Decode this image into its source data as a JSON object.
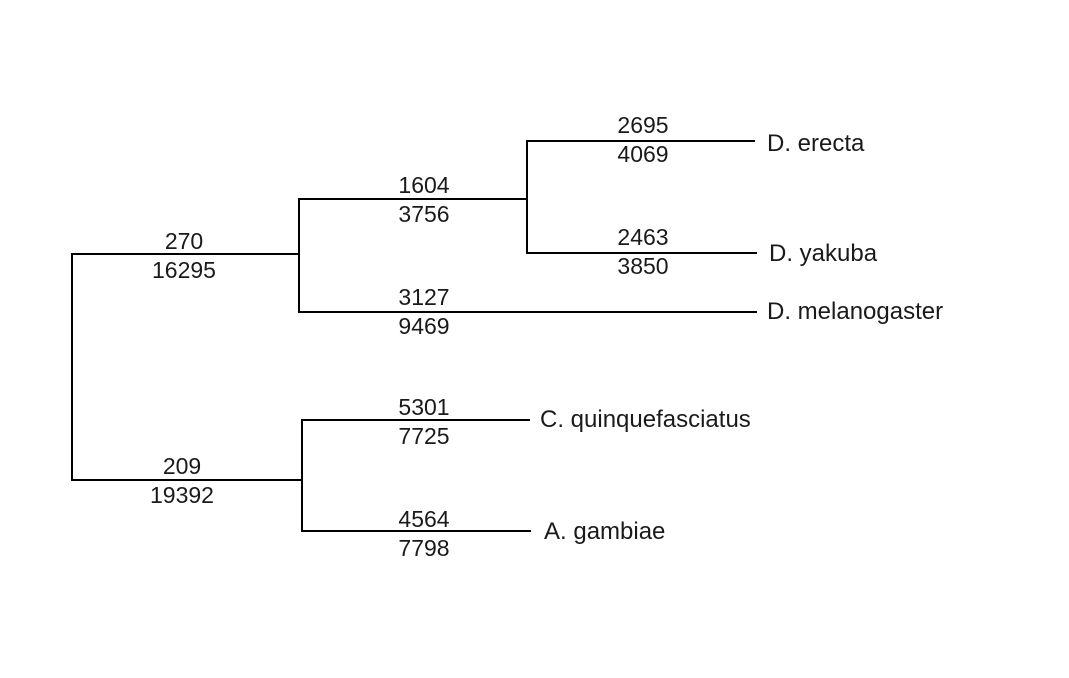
{
  "tree": {
    "leaves": {
      "erecta": "D. erecta",
      "yakuba": "D. yakuba",
      "melanogaster": "D. melanogaster",
      "quinquefasciatus": "C. quinquefasciatus",
      "gambiae": "A. gambiae"
    },
    "branches": {
      "drosophila_clade": {
        "top": "270",
        "bottom": "16295"
      },
      "mosquito_clade": {
        "top": "209",
        "bottom": "19392"
      },
      "erecta_yakuba_clade": {
        "top": "1604",
        "bottom": "3756"
      },
      "melanogaster": {
        "top": "3127",
        "bottom": "9469"
      },
      "erecta": {
        "top": "2695",
        "bottom": "4069"
      },
      "yakuba": {
        "top": "2463",
        "bottom": "3850"
      },
      "quinquefasciatus": {
        "top": "5301",
        "bottom": "7725"
      },
      "gambiae": {
        "top": "4564",
        "bottom": "7798"
      }
    }
  }
}
